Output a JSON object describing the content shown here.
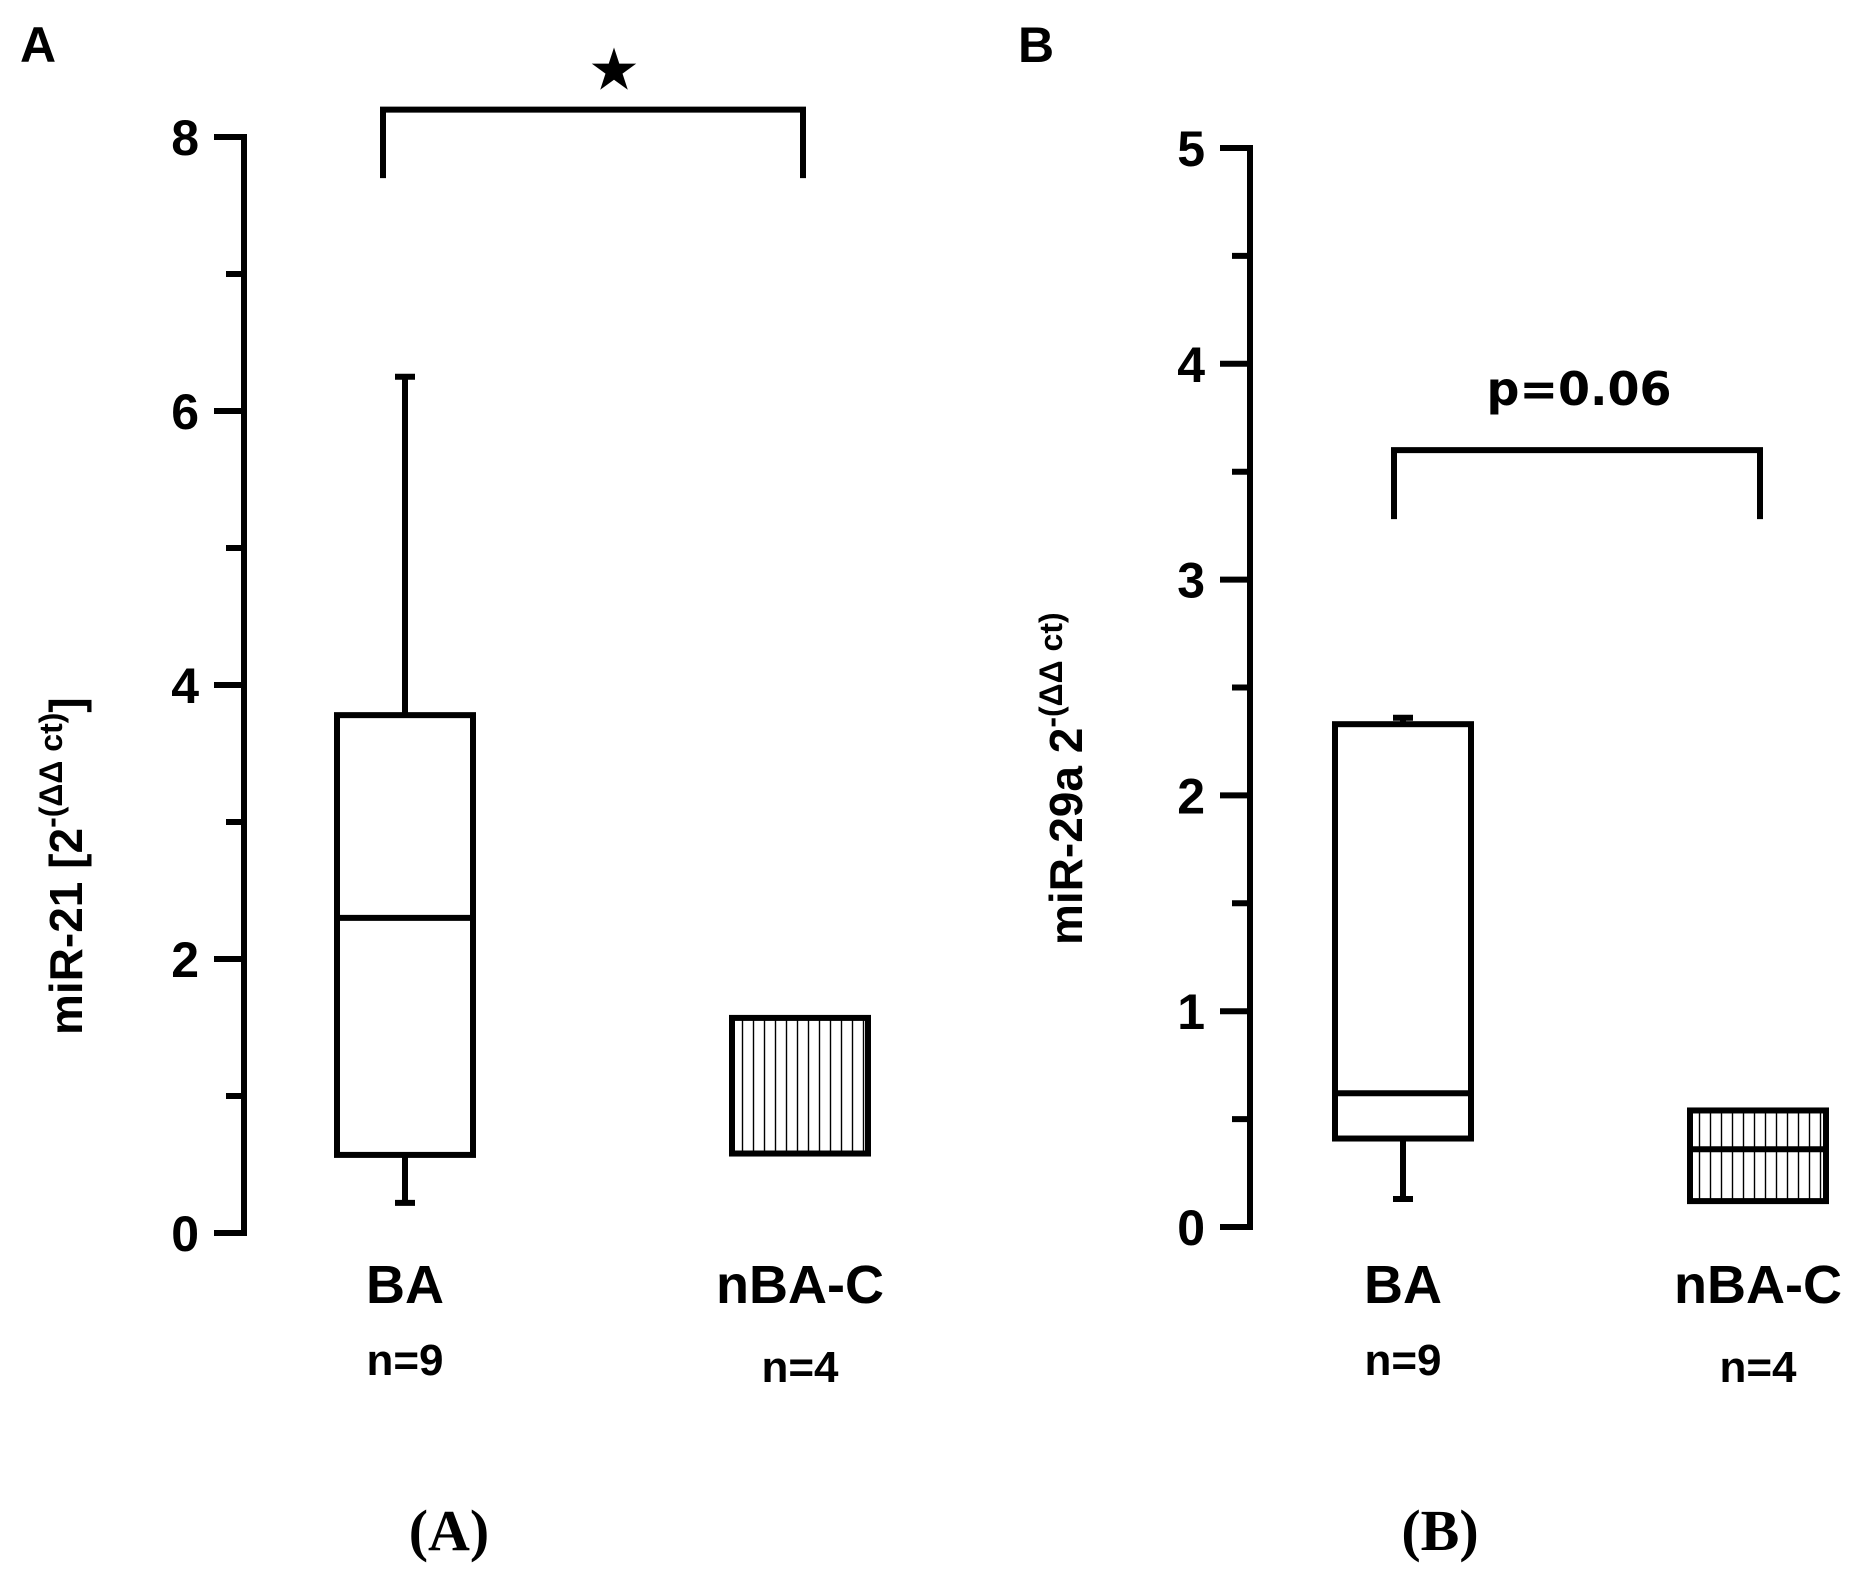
{
  "chart_data": [
    {
      "type": "box",
      "panel_label": "A",
      "caption": "(A)",
      "ylabel_main": "miR-21 [2",
      "ylabel_sup": "-(ΔΔ ct)",
      "ylabel_end": "]",
      "ylim": [
        0,
        8
      ],
      "major_ticks": [
        0,
        2,
        4,
        6,
        8
      ],
      "tick_labels": [
        "0",
        "2",
        "4",
        "6",
        "8"
      ],
      "minor_step": 1,
      "significance": {
        "symbol": "★",
        "bracket_top": 8.2,
        "bracket_bottom": 7.7
      },
      "groups": [
        {
          "name": "BA",
          "n_label": "n=9",
          "whisker_low": 0.22,
          "q1": 0.57,
          "median": 2.3,
          "q3": 3.78,
          "whisker_high": 6.25,
          "pattern": "none"
        },
        {
          "name": "nBA-C",
          "n_label": "n=4",
          "whisker_low": null,
          "q1": 0.58,
          "median": 0.58,
          "q3": 1.57,
          "whisker_high": null,
          "pattern": "vertical-hatch"
        }
      ]
    },
    {
      "type": "box",
      "panel_label": "B",
      "caption": "(B)",
      "ylabel_main": "miR-29a 2",
      "ylabel_sup": "-(ΔΔ ct)",
      "ylabel_end": "",
      "ylim": [
        0,
        5
      ],
      "major_ticks": [
        0,
        1,
        2,
        3,
        4,
        5
      ],
      "tick_labels": [
        "0",
        "1",
        "2",
        "3",
        "4",
        "5"
      ],
      "minor_step": 0.5,
      "significance": {
        "symbol": "p=0.06",
        "bracket_top": 3.6,
        "bracket_bottom": 3.28
      },
      "groups": [
        {
          "name": "BA",
          "n_label": "n=9",
          "whisker_low": 0.13,
          "q1": 0.41,
          "median": 0.62,
          "q3": 2.33,
          "whisker_high": 2.36,
          "pattern": "none"
        },
        {
          "name": "nBA-C",
          "n_label": "n=4",
          "whisker_low": null,
          "q1": 0.12,
          "median": 0.36,
          "q3": 0.54,
          "whisker_high": null,
          "pattern": "vertical-hatch"
        }
      ]
    }
  ]
}
